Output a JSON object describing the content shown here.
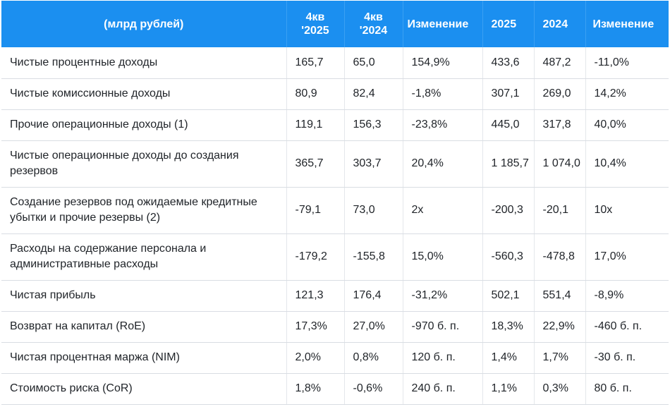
{
  "header": {
    "col0": "(млрд рублей)",
    "col1_line1": "4кв",
    "col1_line2": "'2025",
    "col2_line1": "4кв",
    "col2_line2": "'2024",
    "col3": "Изменение",
    "col4": "2025",
    "col5": "2024",
    "col6": "Изменение"
  },
  "rows": [
    {
      "label": "Чистые процентные доходы",
      "q4_2025": "165,7",
      "q4_2024": "65,0",
      "q_change": "154,9%",
      "y2025": "433,6",
      "y2024": "487,2",
      "y_change": "-11,0%"
    },
    {
      "label": "Чистые комиссионные доходы",
      "q4_2025": "80,9",
      "q4_2024": "82,4",
      "q_change": "-1,8%",
      "y2025": "307,1",
      "y2024": "269,0",
      "y_change": "14,2%"
    },
    {
      "label": "Прочие операционные доходы (1)",
      "q4_2025": "119,1",
      "q4_2024": "156,3",
      "q_change": "-23,8%",
      "y2025": "445,0",
      "y2024": "317,8",
      "y_change": "40,0%"
    },
    {
      "label": "Чистые операционные доходы до создания резервов",
      "q4_2025": "365,7",
      "q4_2024": "303,7",
      "q_change": "20,4%",
      "y2025": "1 185,7",
      "y2024": "1 074,0",
      "y_change": "10,4%"
    },
    {
      "label": "Создание резервов под ожидаемые кредитные убытки и прочие резервы (2)",
      "q4_2025": "-79,1",
      "q4_2024": "73,0",
      "q_change": "2x",
      "y2025": "-200,3",
      "y2024": "-20,1",
      "y_change": "10x"
    },
    {
      "label": "Расходы на содержание персонала и административные расходы",
      "q4_2025": "-179,2",
      "q4_2024": "-155,8",
      "q_change": "15,0%",
      "y2025": "-560,3",
      "y2024": "-478,8",
      "y_change": "17,0%"
    },
    {
      "label": "Чистая прибыль",
      "q4_2025": "121,3",
      "q4_2024": "176,4",
      "q_change": "-31,2%",
      "y2025": "502,1",
      "y2024": "551,4",
      "y_change": "-8,9%"
    },
    {
      "label": "Возврат на капитал (RoE)",
      "q4_2025": "17,3%",
      "q4_2024": "27,0%",
      "q_change": "-970 б. п.",
      "y2025": "18,3%",
      "y2024": "22,9%",
      "y_change": "-460 б. п."
    },
    {
      "label": "Чистая процентная маржа (NIM)",
      "q4_2025": "2,0%",
      "q4_2024": "0,8%",
      "q_change": "120 б. п.",
      "y2025": "1,4%",
      "y2024": "1,7%",
      "y_change": "-30 б. п."
    },
    {
      "label": "Стоимость риска (CoR)",
      "q4_2025": "1,8%",
      "q4_2024": "-0,6%",
      "q_change": "240 б. п.",
      "y2025": "1,1%",
      "y2024": "0,3%",
      "y_change": "80 б. п."
    }
  ],
  "colors": {
    "header_bg": "#1b8ff0",
    "header_text": "#ffffff",
    "row_border": "#d9dde3",
    "text": "#1f2328"
  }
}
